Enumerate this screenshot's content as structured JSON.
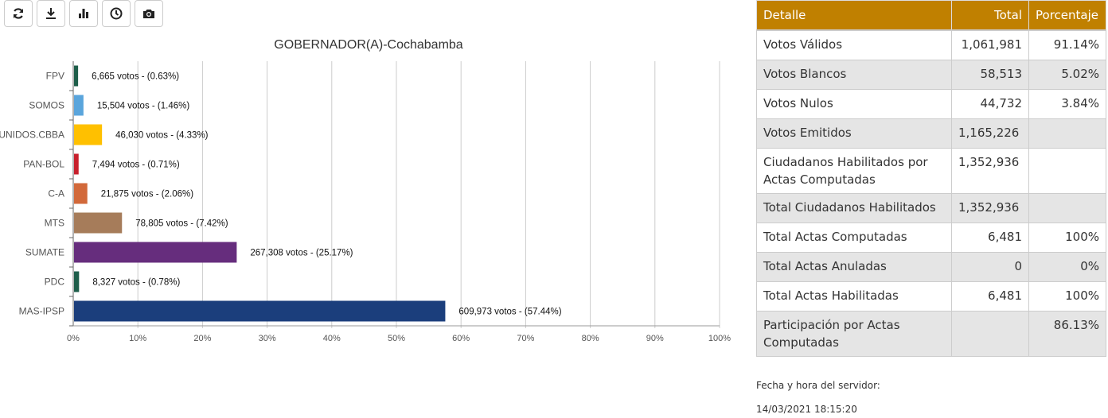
{
  "toolbar": {
    "buttons": [
      {
        "name": "refresh-icon"
      },
      {
        "name": "download-icon"
      },
      {
        "name": "bar-chart-icon"
      },
      {
        "name": "clock-icon"
      },
      {
        "name": "camera-icon"
      }
    ]
  },
  "chart_data": {
    "type": "bar",
    "orientation": "horizontal",
    "title": "GOBERNADOR(A)-Cochabamba",
    "categories": [
      "FPV",
      "SOMOS",
      "UNIDOS.CBBA",
      "PAN-BOL",
      "C-A",
      "MTS",
      "SUMATE",
      "PDC",
      "MAS-IPSP"
    ],
    "values": [
      0.63,
      1.46,
      4.33,
      0.71,
      2.06,
      7.42,
      25.17,
      0.78,
      57.44
    ],
    "labels": [
      "6,665 votos - (0.63%)",
      "15,504 votos - (1.46%)",
      "46,030 votos - (4.33%)",
      "7,494 votos - (0.71%)",
      "21,875 votos - (2.06%)",
      "78,805 votos - (7.42%)",
      "267,308 votos - (25.17%)",
      "8,327 votos - (0.78%)",
      "609,973 votos - (57.44%)"
    ],
    "colors": [
      "#1e5e4a",
      "#5aa5dc",
      "#ffc000",
      "#c8202c",
      "#d2693a",
      "#a67c5a",
      "#662d7d",
      "#1e5e4a",
      "#1b3e7c"
    ],
    "xlim": [
      0,
      100
    ],
    "xticks": [
      "0%",
      "10%",
      "20%",
      "30%",
      "40%",
      "50%",
      "60%",
      "70%",
      "80%",
      "90%",
      "100%"
    ],
    "grid": true
  },
  "table": {
    "headers": [
      "Detalle",
      "Total",
      "Porcentaje"
    ],
    "rows": [
      [
        "Votos Válidos",
        "1,061,981",
        "91.14%"
      ],
      [
        "Votos Blancos",
        "58,513",
        "5.02%"
      ],
      [
        "Votos Nulos",
        "44,732",
        "3.84%"
      ],
      [
        "Votos Emitidos",
        "1,165,226",
        ""
      ],
      [
        "Ciudadanos Habilitados por Actas Computadas",
        "1,352,936",
        ""
      ],
      [
        "Total Ciudadanos Habilitados",
        "1,352,936",
        ""
      ],
      [
        "Total Actas Computadas",
        "6,481",
        "100%"
      ],
      [
        "Total Actas Anuladas",
        "0",
        "0%"
      ],
      [
        "Total Actas Habilitadas",
        "6,481",
        "100%"
      ],
      [
        "Participación por Actas Computadas",
        "",
        "86.13%"
      ]
    ]
  },
  "footer": {
    "label": "Fecha y hora del servidor:",
    "datetime": "14/03/2021 18:15:20"
  }
}
